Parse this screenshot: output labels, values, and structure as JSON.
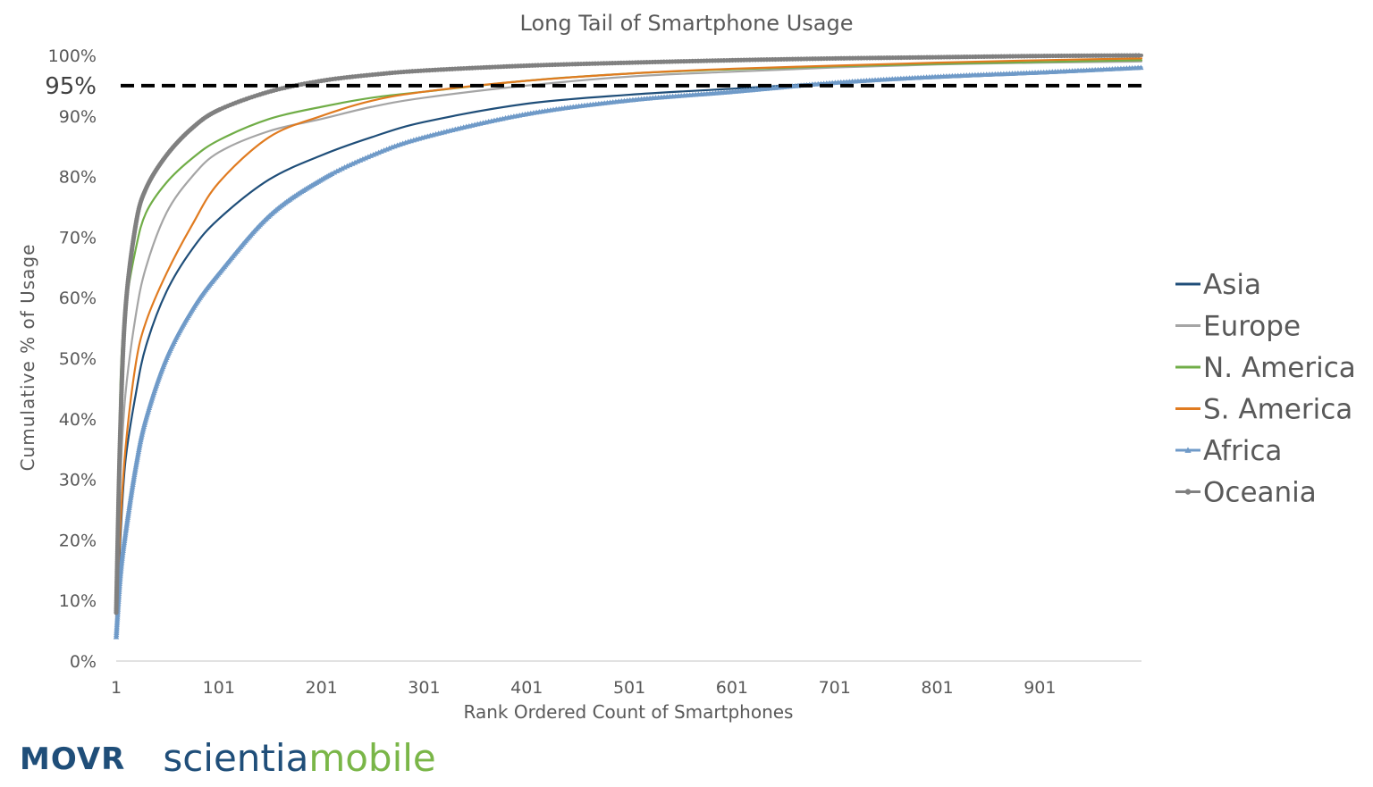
{
  "chart_data": {
    "type": "line",
    "title": "Long Tail of Smartphone Usage",
    "xlabel": "Rank Ordered Count of Smartphones",
    "ylabel": "Cumulative % of Usage",
    "xlim": [
      1,
      1000
    ],
    "ylim": [
      0,
      100
    ],
    "x_ticks": [
      1,
      101,
      201,
      301,
      401,
      501,
      601,
      701,
      801,
      901
    ],
    "y_ticks": [
      "0%",
      "10%",
      "20%",
      "30%",
      "40%",
      "50%",
      "60%",
      "70%",
      "80%",
      "90%",
      "100%"
    ],
    "grid": false,
    "legend_position": "right",
    "reference_line": {
      "value": 95,
      "label": "95%",
      "style": "dashed",
      "color": "#000000"
    },
    "x": [
      1,
      5,
      10,
      20,
      30,
      50,
      75,
      101,
      150,
      201,
      250,
      301,
      400,
      501,
      601,
      701,
      801,
      901,
      1000
    ],
    "series": [
      {
        "name": "Asia",
        "color": "#1f4e79",
        "marker": "none",
        "values": [
          5,
          20,
          33,
          44,
          52,
          61,
          68,
          73,
          79.5,
          83.5,
          86.5,
          89,
          92,
          93.5,
          94.5,
          95.5,
          96.3,
          97,
          97.8
        ]
      },
      {
        "name": "Europe",
        "color": "#a5a5a5",
        "marker": "none",
        "values": [
          8,
          30,
          44,
          57,
          65,
          74,
          80,
          84,
          87.5,
          89.5,
          91.5,
          93,
          95,
          96.5,
          97.3,
          98,
          98.5,
          98.8,
          99
        ]
      },
      {
        "name": "N. America",
        "color": "#70ad47",
        "marker": "none",
        "values": [
          10,
          45,
          58,
          68,
          74,
          79,
          83,
          86,
          89.5,
          91.5,
          93,
          94,
          95.8,
          97,
          97.7,
          98.2,
          98.6,
          98.9,
          99.2
        ]
      },
      {
        "name": "S. America",
        "color": "#e07b20",
        "marker": "none",
        "values": [
          6,
          22,
          35,
          49,
          56,
          64,
          72,
          79,
          86.5,
          90,
          92.5,
          94,
          95.8,
          97,
          97.8,
          98.3,
          98.8,
          99.2,
          99.5
        ]
      },
      {
        "name": "Africa",
        "color": "#6f9ac8",
        "marker": "triangle",
        "values": [
          4,
          14,
          21,
          32,
          40,
          50,
          58,
          64,
          73.5,
          79.5,
          83.5,
          86.5,
          90.3,
          92.6,
          94,
          95.5,
          96.5,
          97.2,
          98
        ]
      },
      {
        "name": "Oceania",
        "color": "#808080",
        "marker": "circle",
        "values": [
          8,
          38,
          58,
          72,
          78,
          83.5,
          88,
          91,
          94,
          95.8,
          96.8,
          97.5,
          98.3,
          98.8,
          99.2,
          99.5,
          99.7,
          99.9,
          100
        ]
      }
    ]
  },
  "branding": {
    "movr": "MOVR",
    "scientia": "scientia",
    "mobile": "mobile"
  }
}
